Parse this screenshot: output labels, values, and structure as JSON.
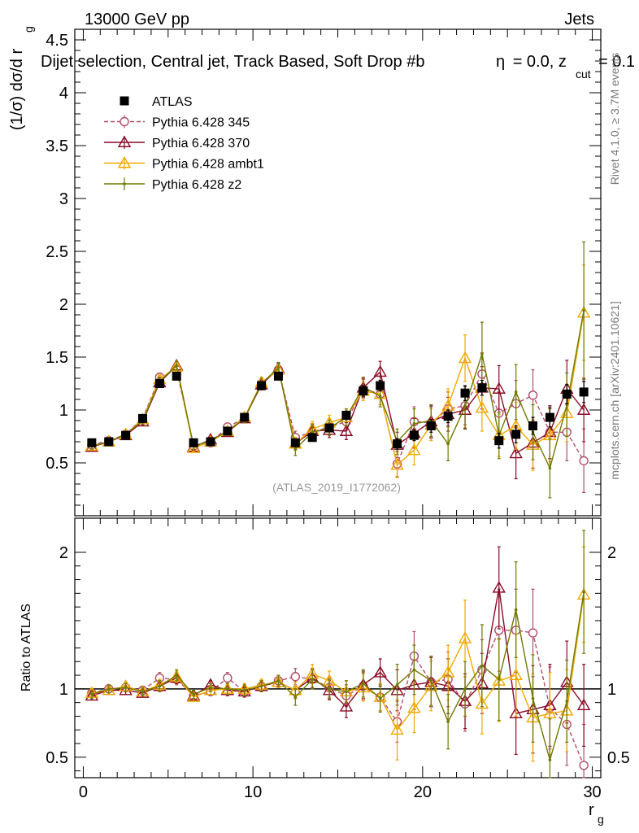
{
  "header": {
    "energy_label": "13000 GeV pp",
    "process_label": "Jets",
    "selection_label": "Dijet selection, Central jet, Track Based, Soft Drop #b",
    "param_label": "= 0.0, z",
    "param_sub": "cut",
    "param_value": "= 0.1",
    "param_symbol": "η",
    "watermark": "(ATLAS_2019_I1772062)",
    "rivet_label": "Rivet 4.1.0, ≥ 3.7M events",
    "mcplots_label": "mcplots.cern.ch [arXiv:2401.10621]"
  },
  "chart_data": [
    {
      "type": "scatter",
      "panel": "main",
      "title": "Dijet selection, Central jet, Track Based, Soft Drop",
      "ylabel": "(1/σ) dσ/d r_g",
      "ylabel_main": "(1/σ) dσ/d r",
      "ylabel_sub": "g",
      "xlabel": "",
      "xlim": [
        -0.5,
        30.5
      ],
      "ylim": [
        0,
        4.6
      ],
      "y_ticks": [
        0.5,
        1,
        1.5,
        2,
        2.5,
        3,
        3.5,
        4,
        4.5
      ],
      "y_tick_labels": [
        "0.5",
        "1",
        "1.5",
        "2",
        "2.5",
        "3",
        "3.5",
        "4",
        "4.5"
      ],
      "x": [
        0.5,
        1.5,
        2.5,
        3.5,
        4.5,
        5.5,
        6.5,
        7.5,
        8.5,
        9.5,
        10.5,
        11.5,
        12.5,
        13.5,
        14.5,
        15.5,
        16.5,
        17.5,
        18.5,
        19.5,
        20.5,
        21.5,
        22.5,
        23.5,
        24.5,
        25.5,
        26.5,
        27.5,
        28.5,
        29.5
      ],
      "legend_position": "top-left",
      "series": [
        {
          "name": "ATLAS",
          "color": "#000000",
          "marker": "square",
          "values": [
            0.69,
            0.7,
            0.76,
            0.92,
            1.25,
            1.32,
            0.69,
            0.7,
            0.8,
            0.93,
            1.23,
            1.32,
            0.69,
            0.74,
            0.83,
            0.95,
            1.18,
            1.23,
            0.68,
            0.76,
            0.85,
            0.94,
            1.16,
            1.21,
            0.71,
            0.77,
            0.85,
            0.93,
            1.15,
            1.17
          ],
          "errors": [
            0.02,
            0.02,
            0.02,
            0.02,
            0.03,
            0.03,
            0.02,
            0.02,
            0.02,
            0.02,
            0.03,
            0.03,
            0.03,
            0.03,
            0.03,
            0.04,
            0.05,
            0.05,
            0.05,
            0.05,
            0.06,
            0.06,
            0.07,
            0.07,
            0.07,
            0.08,
            0.08,
            0.09,
            0.09,
            0.1
          ]
        },
        {
          "name": "Pythia 6.428 345",
          "color": "#b34d66",
          "marker": "circle-open",
          "dash": "5,3",
          "values": [
            0.67,
            0.71,
            0.77,
            0.92,
            1.31,
            1.38,
            0.66,
            0.69,
            0.84,
            0.92,
            1.25,
            1.38,
            0.74,
            0.79,
            0.84,
            0.89,
            1.2,
            1.15,
            0.49,
            0.89,
            0.88,
            1.01,
            1.04,
            1.34,
            0.97,
            1.06,
            1.14,
            0.79,
            0.79,
            0.52
          ],
          "errors": [
            0.03,
            0.03,
            0.03,
            0.03,
            0.04,
            0.04,
            0.03,
            0.03,
            0.03,
            0.04,
            0.05,
            0.05,
            0.06,
            0.07,
            0.07,
            0.08,
            0.09,
            0.1,
            0.12,
            0.14,
            0.15,
            0.16,
            0.18,
            0.2,
            0.2,
            0.22,
            0.24,
            0.25,
            0.27,
            0.3
          ]
        },
        {
          "name": "Pythia 6.428 370",
          "color": "#8b0a25",
          "marker": "triangle-open",
          "values": [
            0.65,
            0.7,
            0.76,
            0.89,
            1.26,
            1.42,
            0.65,
            0.72,
            0.79,
            0.92,
            1.24,
            1.39,
            0.68,
            0.8,
            0.81,
            0.8,
            1.21,
            1.36,
            0.67,
            0.78,
            0.89,
            0.96,
            1.0,
            1.21,
            1.2,
            0.59,
            0.69,
            0.79,
            1.2,
            1.0
          ],
          "errors": [
            0.03,
            0.03,
            0.03,
            0.03,
            0.04,
            0.04,
            0.03,
            0.03,
            0.03,
            0.04,
            0.05,
            0.05,
            0.06,
            0.07,
            0.07,
            0.08,
            0.09,
            0.1,
            0.12,
            0.14,
            0.15,
            0.16,
            0.18,
            0.2,
            0.22,
            0.24,
            0.24,
            0.25,
            0.27,
            0.3
          ]
        },
        {
          "name": "Pythia 6.428 ambt1",
          "color": "#f0a800",
          "marker": "triangle-open",
          "values": [
            0.66,
            0.7,
            0.77,
            0.91,
            1.29,
            1.41,
            0.64,
            0.7,
            0.8,
            0.93,
            1.26,
            1.38,
            0.68,
            0.82,
            0.88,
            0.93,
            1.18,
            1.15,
            0.48,
            0.62,
            0.86,
            1.04,
            1.49,
            1.02,
            0.76,
            0.85,
            0.67,
            0.76,
            0.97,
            1.92
          ],
          "errors": [
            0.03,
            0.03,
            0.03,
            0.03,
            0.04,
            0.04,
            0.03,
            0.03,
            0.03,
            0.04,
            0.05,
            0.05,
            0.06,
            0.07,
            0.07,
            0.08,
            0.09,
            0.1,
            0.12,
            0.14,
            0.15,
            0.16,
            0.22,
            0.22,
            0.2,
            0.22,
            0.24,
            0.25,
            0.27,
            0.45
          ]
        },
        {
          "name": "Pythia 6.428 z2",
          "color": "#6f7a00",
          "marker": "dot",
          "values": [
            0.66,
            0.7,
            0.77,
            0.9,
            1.27,
            1.42,
            0.66,
            0.71,
            0.8,
            0.92,
            1.25,
            1.4,
            0.63,
            0.79,
            0.83,
            0.93,
            1.22,
            1.13,
            0.7,
            0.87,
            0.9,
            0.68,
            1.03,
            1.53,
            0.76,
            1.17,
            0.79,
            0.45,
            1.05,
            1.94
          ],
          "errors": [
            0.03,
            0.03,
            0.03,
            0.03,
            0.04,
            0.04,
            0.03,
            0.03,
            0.03,
            0.04,
            0.05,
            0.05,
            0.06,
            0.07,
            0.07,
            0.08,
            0.09,
            0.1,
            0.12,
            0.14,
            0.15,
            0.16,
            0.2,
            0.3,
            0.22,
            0.26,
            0.26,
            0.28,
            0.3,
            0.65
          ]
        }
      ]
    },
    {
      "type": "scatter",
      "panel": "ratio",
      "xlabel": "r_g",
      "xlabel_main": "r",
      "xlabel_sub": "g",
      "ylabel": "Ratio to ATLAS",
      "xlim": [
        -0.5,
        30.5
      ],
      "ylim": [
        0.35,
        2.25
      ],
      "x_ticks": [
        0,
        10,
        20,
        30
      ],
      "x_tick_labels": [
        "0",
        "10",
        "20",
        "30"
      ],
      "y_ticks": [
        0.5,
        1,
        2
      ],
      "y_tick_labels": [
        "0.5",
        "1",
        "2"
      ],
      "reference_line": 1,
      "x": [
        0.5,
        1.5,
        2.5,
        3.5,
        4.5,
        5.5,
        6.5,
        7.5,
        8.5,
        9.5,
        10.5,
        11.5,
        12.5,
        13.5,
        14.5,
        15.5,
        16.5,
        17.5,
        18.5,
        19.5,
        20.5,
        21.5,
        22.5,
        23.5,
        24.5,
        25.5,
        26.5,
        27.5,
        28.5,
        29.5
      ],
      "series": [
        {
          "name": "Pythia 6.428 345",
          "color": "#b34d66",
          "marker": "circle-open",
          "dash": "5,3",
          "values": [
            0.97,
            1.0,
            1.01,
            0.99,
            1.08,
            1.07,
            0.95,
            0.98,
            1.08,
            0.98,
            1.02,
            1.06,
            1.09,
            1.07,
            1.01,
            0.95,
            1.02,
            0.94,
            0.76,
            1.24,
            1.05,
            1.07,
            0.89,
            1.14,
            1.43,
            1.43,
            1.41,
            0.86,
            0.74,
            0.44
          ],
          "errors": [
            0.03,
            0.03,
            0.03,
            0.03,
            0.04,
            0.04,
            0.03,
            0.03,
            0.04,
            0.04,
            0.04,
            0.04,
            0.06,
            0.07,
            0.07,
            0.08,
            0.1,
            0.1,
            0.15,
            0.18,
            0.18,
            0.2,
            0.2,
            0.22,
            0.3,
            0.3,
            0.32,
            0.3,
            0.3,
            0.3
          ]
        },
        {
          "name": "Pythia 6.428 370",
          "color": "#8b0a25",
          "marker": "triangle-open",
          "values": [
            0.95,
            0.99,
            0.99,
            0.97,
            1.02,
            1.08,
            0.95,
            1.03,
            0.99,
            0.98,
            1.02,
            1.05,
            0.99,
            1.08,
            0.99,
            0.87,
            1.03,
            1.12,
            0.99,
            1.03,
            1.05,
            1.02,
            0.91,
            1.04,
            1.74,
            0.82,
            0.85,
            0.88,
            1.05,
            0.88
          ],
          "errors": [
            0.03,
            0.03,
            0.03,
            0.03,
            0.04,
            0.04,
            0.03,
            0.03,
            0.04,
            0.04,
            0.04,
            0.04,
            0.06,
            0.07,
            0.07,
            0.08,
            0.1,
            0.1,
            0.15,
            0.18,
            0.18,
            0.2,
            0.2,
            0.22,
            0.3,
            0.3,
            0.32,
            0.3,
            0.3,
            0.3
          ]
        },
        {
          "name": "Pythia 6.428 ambt1",
          "color": "#f0a800",
          "marker": "triangle-open",
          "values": [
            0.97,
            0.99,
            1.02,
            0.98,
            1.03,
            1.09,
            0.94,
            0.99,
            1.0,
            1.0,
            1.03,
            1.05,
            0.99,
            1.11,
            1.06,
            0.98,
            1.01,
            0.94,
            0.7,
            0.86,
            1.02,
            1.12,
            1.37,
            0.89,
            1.06,
            1.1,
            0.79,
            0.82,
            0.84,
            1.69
          ],
          "errors": [
            0.03,
            0.03,
            0.03,
            0.03,
            0.04,
            0.04,
            0.03,
            0.03,
            0.04,
            0.04,
            0.04,
            0.04,
            0.06,
            0.07,
            0.07,
            0.08,
            0.1,
            0.1,
            0.22,
            0.18,
            0.18,
            0.2,
            0.28,
            0.22,
            0.3,
            0.3,
            0.32,
            0.3,
            0.3,
            0.35
          ]
        },
        {
          "name": "Pythia 6.428 z2",
          "color": "#6f7a00",
          "marker": "dot",
          "values": [
            0.96,
            1.0,
            1.01,
            0.98,
            1.02,
            1.1,
            0.96,
            1.01,
            1.0,
            0.99,
            1.02,
            1.06,
            0.94,
            1.07,
            1.0,
            0.98,
            1.04,
            0.93,
            1.03,
            1.14,
            1.06,
            0.76,
            1.0,
            1.17,
            1.07,
            1.58,
            0.93,
            0.48,
            0.91,
            1.71
          ],
          "errors": [
            0.03,
            0.03,
            0.03,
            0.03,
            0.04,
            0.04,
            0.03,
            0.03,
            0.04,
            0.04,
            0.04,
            0.04,
            0.06,
            0.07,
            0.07,
            0.08,
            0.1,
            0.1,
            0.15,
            0.18,
            0.18,
            0.2,
            0.2,
            0.3,
            0.3,
            0.35,
            0.32,
            0.3,
            0.3,
            0.45
          ]
        }
      ]
    }
  ]
}
